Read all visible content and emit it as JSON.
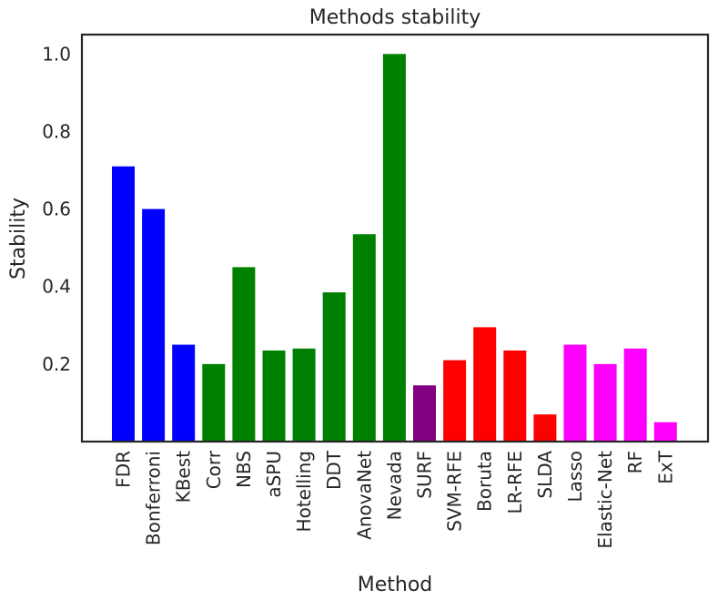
{
  "chart_data": {
    "type": "bar",
    "title": "Methods stability",
    "xlabel": "Method",
    "ylabel": "Stability",
    "ylim": [
      0,
      1.05
    ],
    "yticks": [
      0.2,
      0.4,
      0.6,
      0.8,
      1.0
    ],
    "ytick_labels": [
      "0.2",
      "0.4",
      "0.6",
      "0.8",
      "1.0"
    ],
    "grid": false,
    "categories": [
      "FDR",
      "Bonferroni",
      "KBest",
      "Corr",
      "NBS",
      "aSPU",
      "Hotelling",
      "DDT",
      "AnovaNet",
      "Nevada",
      "SURF",
      "SVM-RFE",
      "Boruta",
      "LR-RFE",
      "SLDA",
      "Lasso",
      "Elastic-Net",
      "RF",
      "ExT"
    ],
    "values": [
      0.71,
      0.6,
      0.25,
      0.2,
      0.45,
      0.235,
      0.24,
      0.385,
      0.535,
      1.0,
      0.145,
      0.21,
      0.295,
      0.235,
      0.07,
      0.25,
      0.2,
      0.24,
      0.05
    ],
    "colors": [
      "#0000ff",
      "#0000ff",
      "#0000ff",
      "#008000",
      "#008000",
      "#008000",
      "#008000",
      "#008000",
      "#008000",
      "#008000",
      "#800080",
      "#ff0000",
      "#ff0000",
      "#ff0000",
      "#ff0000",
      "#ff00ff",
      "#ff00ff",
      "#ff00ff",
      "#ff00ff"
    ]
  }
}
